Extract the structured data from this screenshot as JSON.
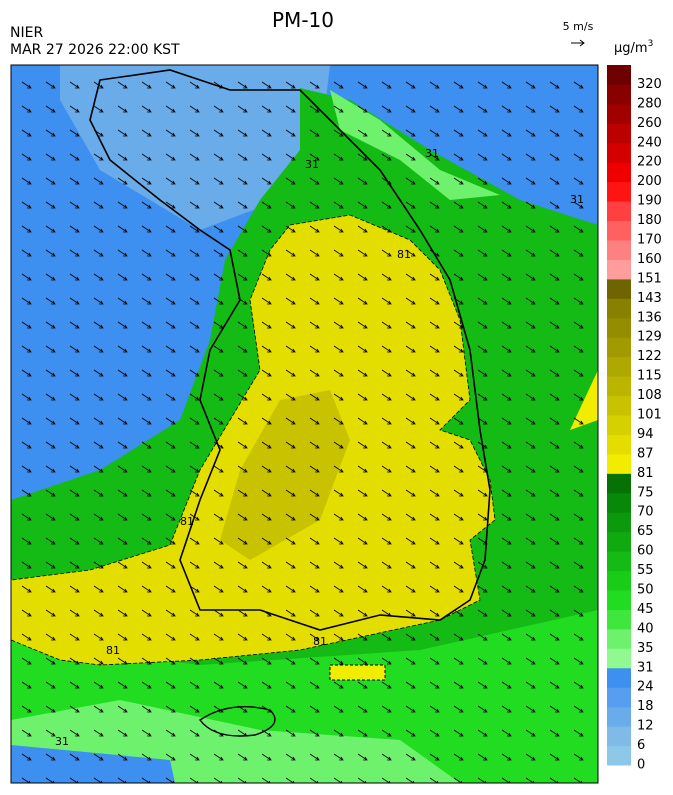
{
  "header": {
    "title": "PM-10",
    "agency": "NIER",
    "timestamp": "MAR 27 2026 22:00 KST",
    "wind_scale": "5 m/s",
    "unit": "μg/m",
    "unit_superscript": "3"
  },
  "legend": {
    "ticks": [
      0,
      6,
      12,
      18,
      24,
      31,
      35,
      40,
      45,
      50,
      55,
      60,
      65,
      70,
      75,
      81,
      87,
      94,
      101,
      108,
      115,
      122,
      129,
      136,
      143,
      151,
      160,
      170,
      180,
      190,
      200,
      220,
      240,
      260,
      280,
      320
    ],
    "colors": [
      "#8ec8e8",
      "#7fbbe6",
      "#6aabea",
      "#579df0",
      "#3d8ff0",
      "#90fa90",
      "#6ef26e",
      "#3ee63e",
      "#22dc22",
      "#18cc18",
      "#14bb14",
      "#10aa10",
      "#0c990c",
      "#088808",
      "#067206",
      "#f2ec00",
      "#e4de00",
      "#d6d000",
      "#c9c200",
      "#bcb500",
      "#aea800",
      "#a19a00",
      "#948d00",
      "#878000",
      "#6e6500",
      "#ff9c9c",
      "#ff8080",
      "#ff6060",
      "#ff4040",
      "#ff1414",
      "#ee0000",
      "#d40000",
      "#bb0000",
      "#a00000",
      "#880000",
      "#6e0000"
    ]
  },
  "map": {
    "contour_labels": [
      "31",
      "31",
      "31",
      "81",
      "81",
      "81",
      "81",
      "31"
    ]
  }
}
